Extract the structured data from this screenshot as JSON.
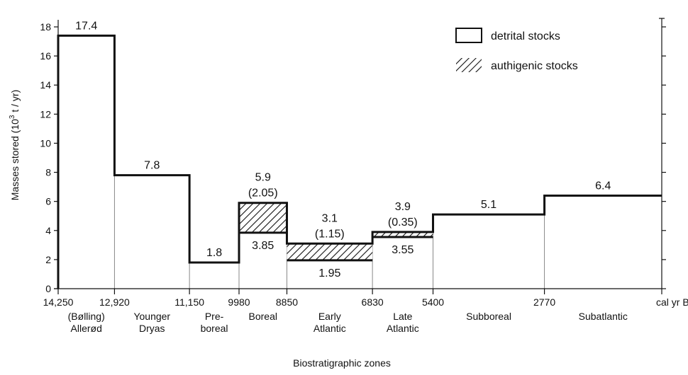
{
  "chart_data": {
    "type": "bar",
    "ylabel": "Masses stored (10",
    "ylabel_sup": "3",
    "ylabel_unit": " t / yr)",
    "xlabel": "Biostratigraphic zones",
    "ylim": [
      0,
      18
    ],
    "yticks": [
      "0",
      "2",
      "4",
      "6",
      "8",
      "10",
      "12",
      "14",
      "16",
      "18"
    ],
    "xlim": [
      14250,
      0
    ],
    "boundaries": [
      {
        "value": 14250,
        "label": "14,250"
      },
      {
        "value": 12920,
        "label": "12,920"
      },
      {
        "value": 11150,
        "label": "11,150"
      },
      {
        "value": 9980,
        "label": "9980"
      },
      {
        "value": 8850,
        "label": "8850"
      },
      {
        "value": 6830,
        "label": "6830"
      },
      {
        "value": 5400,
        "label": "5400"
      },
      {
        "value": 2770,
        "label": "2770"
      },
      {
        "value": 0,
        "label": "cal yr B.P."
      }
    ],
    "zones": [
      {
        "name": [
          "(Bølling)",
          "Allerød"
        ],
        "from": 14250,
        "to": 12920,
        "total": 17.4,
        "detrital": 17.4,
        "authigenic": 0,
        "top_label": [
          "17.4"
        ],
        "inner_label": ""
      },
      {
        "name": [
          "Younger",
          "Dryas"
        ],
        "from": 12920,
        "to": 11150,
        "total": 7.8,
        "detrital": 7.8,
        "authigenic": 0,
        "top_label": [
          "7.8"
        ],
        "inner_label": ""
      },
      {
        "name": [
          "Pre-",
          "boreal"
        ],
        "from": 11150,
        "to": 9980,
        "total": 1.8,
        "detrital": 1.8,
        "authigenic": 0,
        "top_label": [
          "1.8"
        ],
        "inner_label": ""
      },
      {
        "name": [
          "Boreal"
        ],
        "from": 9980,
        "to": 8850,
        "total": 5.9,
        "detrital": 3.85,
        "authigenic": 2.05,
        "top_label": [
          "5.9",
          "(2.05)"
        ],
        "inner_label": "3.85"
      },
      {
        "name": [
          "Early",
          "Atlantic"
        ],
        "from": 8850,
        "to": 6830,
        "total": 3.1,
        "detrital": 1.95,
        "authigenic": 1.15,
        "top_label": [
          "3.1",
          "(1.15)"
        ],
        "inner_label": "1.95"
      },
      {
        "name": [
          "Late",
          "Atlantic"
        ],
        "from": 6830,
        "to": 5400,
        "total": 3.9,
        "detrital": 3.55,
        "authigenic": 0.35,
        "top_label": [
          "3.9",
          "(0.35)"
        ],
        "inner_label": "3.55"
      },
      {
        "name": [
          "Subboreal"
        ],
        "from": 5400,
        "to": 2770,
        "total": 5.1,
        "detrital": 5.1,
        "authigenic": 0,
        "top_label": [
          "5.1"
        ],
        "inner_label": ""
      },
      {
        "name": [
          "Subatlantic"
        ],
        "from": 2770,
        "to": 0,
        "total": 6.4,
        "detrital": 6.4,
        "authigenic": 0,
        "top_label": [
          "6.4"
        ],
        "inner_label": ""
      }
    ],
    "legend": [
      {
        "name": "detrital stocks",
        "style": "open"
      },
      {
        "name": "authigenic stocks",
        "style": "hatched"
      }
    ],
    "legend_position": "top-right"
  }
}
